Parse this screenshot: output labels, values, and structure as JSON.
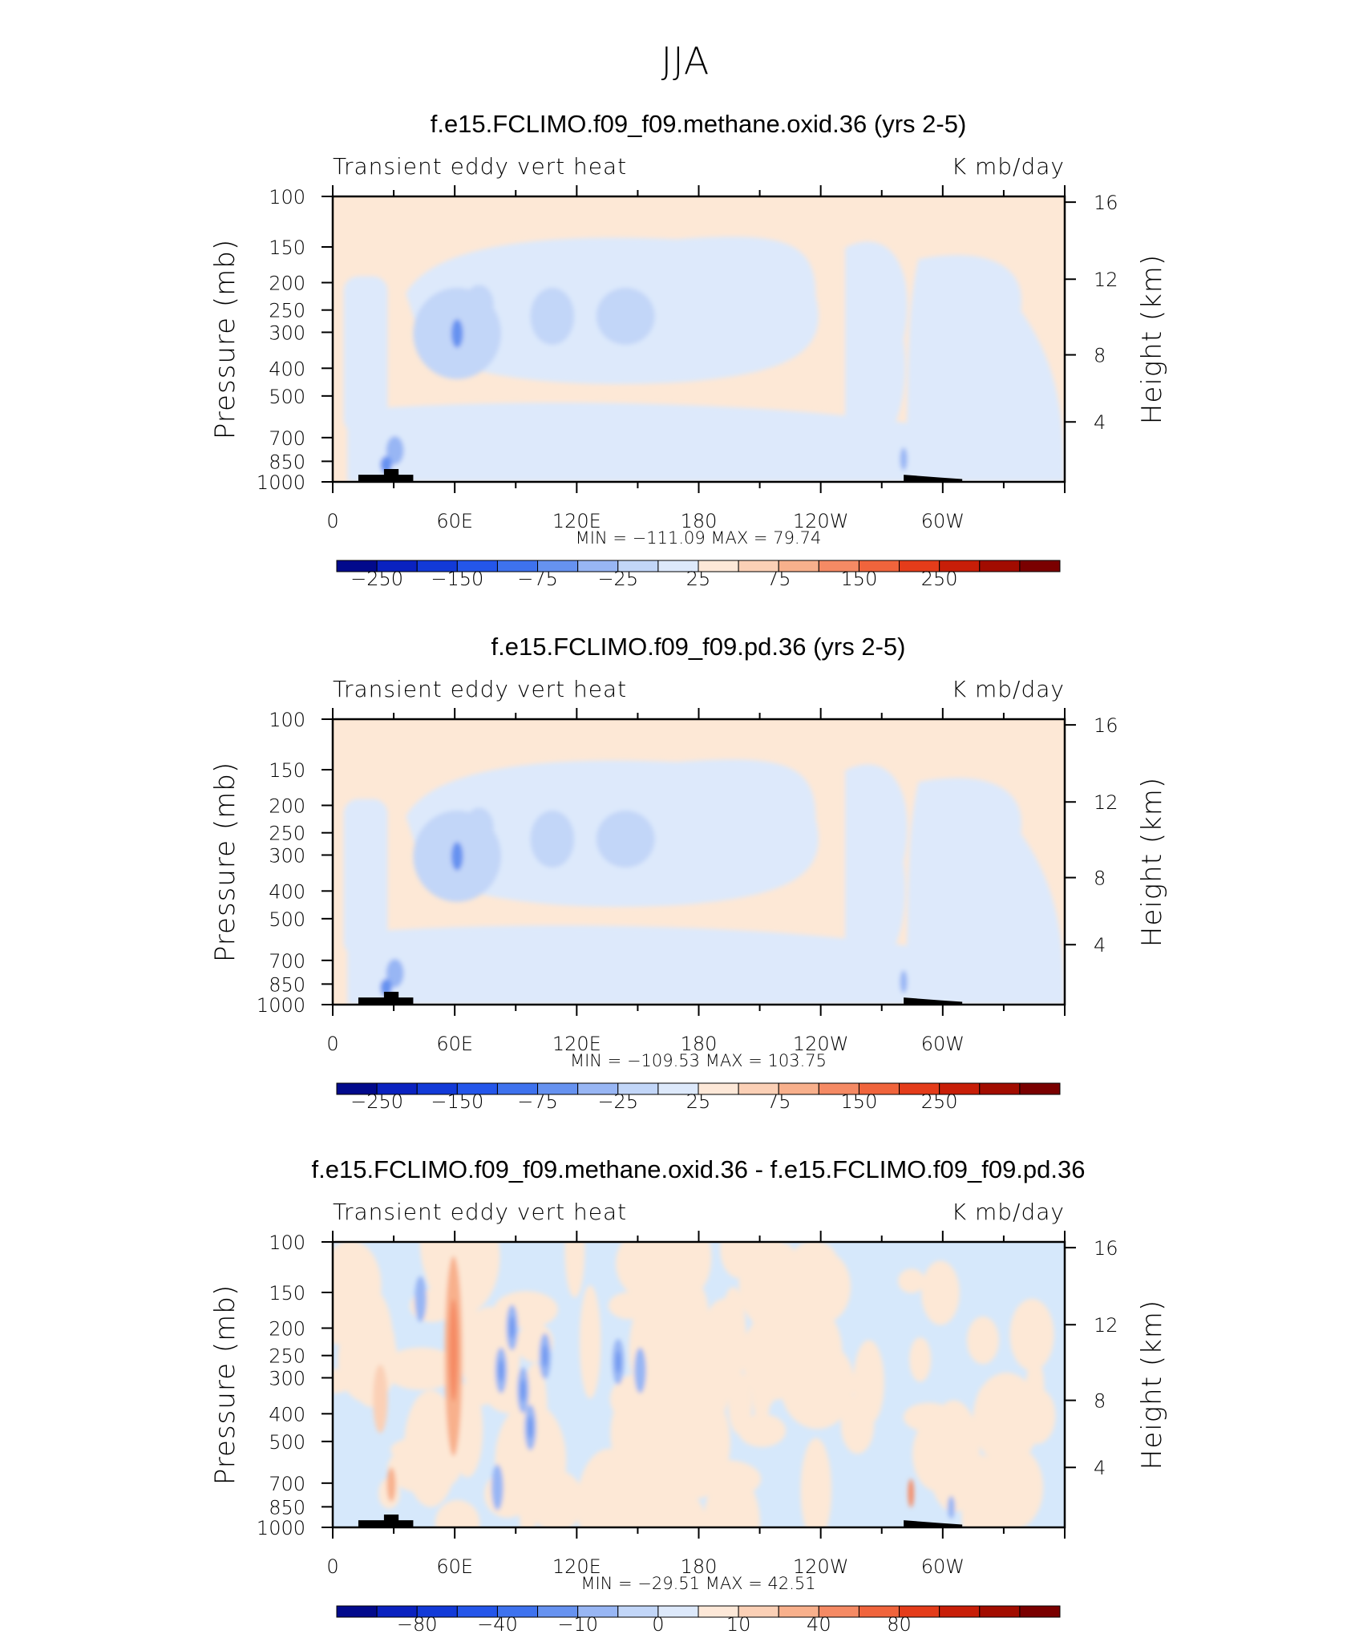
{
  "figure": {
    "title": "JJA"
  },
  "colors": {
    "positive_light": "#fde8d6",
    "negative_light": "#d6e8fb",
    "neg_levels": [
      "#020a8c",
      "#0a22c0",
      "#123ad8",
      "#2456ea",
      "#3e72ee",
      "#6692f0",
      "#98b6f4",
      "#c2d6f8",
      "#dde9fb"
    ],
    "pos_levels": [
      "#fde8d8",
      "#fbd0b6",
      "#f8b08c",
      "#f58a64",
      "#f0643c",
      "#e43c1a",
      "#c81e08",
      "#a20c00",
      "#7a0000"
    ],
    "topography": "#000000"
  },
  "chart_data": [
    {
      "type": "heatmap",
      "title": "f.e15.FCLIMO.f09_f09.methane.oxid.36 (yrs 2-5)",
      "left_label": "Transient eddy vert heat",
      "right_label": "K mb/day",
      "ylabel": "Pressure (mb)",
      "ylabel_right": "Height (km)",
      "x_ticks": [
        "0",
        "60E",
        "120E",
        "180",
        "120W",
        "60W"
      ],
      "y_ticks": [
        "100",
        "150",
        "200",
        "250",
        "300",
        "400",
        "500",
        "700",
        "850",
        "1000"
      ],
      "y2_ticks": [
        "16",
        "12",
        "8",
        "4"
      ],
      "stats": "MIN = −111.09   MAX =   79.74",
      "colorbar_labels": [
        "−250",
        "−150",
        "−75",
        "−25",
        "25",
        "75",
        "150",
        "250"
      ],
      "min": -111.09,
      "max": 79.74
    },
    {
      "type": "heatmap",
      "title": "f.e15.FCLIMO.f09_f09.pd.36 (yrs 2-5)",
      "left_label": "Transient eddy vert heat",
      "right_label": "K mb/day",
      "ylabel": "Pressure (mb)",
      "ylabel_right": "Height (km)",
      "x_ticks": [
        "0",
        "60E",
        "120E",
        "180",
        "120W",
        "60W"
      ],
      "y_ticks": [
        "100",
        "150",
        "200",
        "250",
        "300",
        "400",
        "500",
        "700",
        "850",
        "1000"
      ],
      "y2_ticks": [
        "16",
        "12",
        "8",
        "4"
      ],
      "stats": "MIN = −109.53   MAX = 103.75",
      "colorbar_labels": [
        "−250",
        "−150",
        "−75",
        "−25",
        "25",
        "75",
        "150",
        "250"
      ],
      "min": -109.53,
      "max": 103.75
    },
    {
      "type": "heatmap",
      "title": "f.e15.FCLIMO.f09_f09.methane.oxid.36 - f.e15.FCLIMO.f09_f09.pd.36",
      "left_label": "Transient eddy vert heat",
      "right_label": "K mb/day",
      "ylabel": "Pressure (mb)",
      "ylabel_right": "Height (km)",
      "x_ticks": [
        "0",
        "60E",
        "120E",
        "180",
        "120W",
        "60W"
      ],
      "y_ticks": [
        "100",
        "150",
        "200",
        "250",
        "300",
        "400",
        "500",
        "700",
        "850",
        "1000"
      ],
      "y2_ticks": [
        "16",
        "12",
        "8",
        "4"
      ],
      "stats": "MIN = −29.51   MAX =   42.51",
      "colorbar_labels": [
        "−80",
        "−40",
        "−10",
        "0",
        "10",
        "40",
        "80"
      ],
      "min": -29.51,
      "max": 42.51
    }
  ]
}
